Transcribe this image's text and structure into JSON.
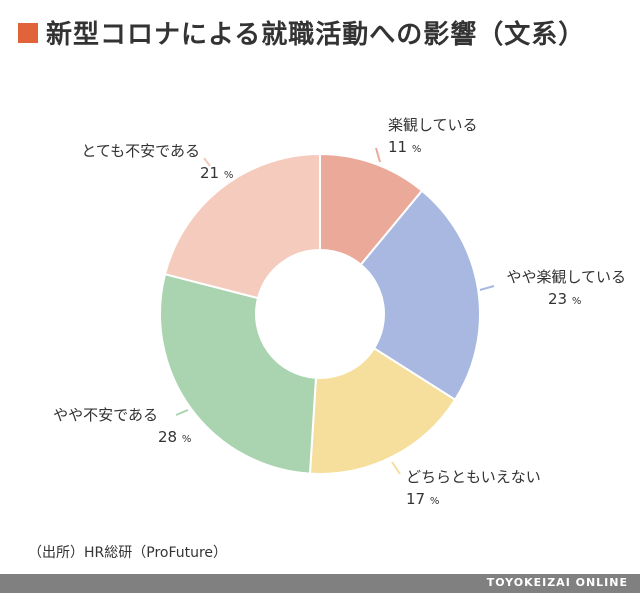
{
  "title": "新型コロナによる就職活動への影響（文系）",
  "accent_color": "#e0633a",
  "source": "（出所）HR総研（ProFuture）",
  "footer": "TOYOKEIZAI ONLINE",
  "chart_data": {
    "type": "pie",
    "donut": true,
    "unit": "%",
    "slices": [
      {
        "label": "楽観している",
        "value": 11,
        "color": "#eba999"
      },
      {
        "label": "やや楽観している",
        "value": 23,
        "color": "#a8b8e0"
      },
      {
        "label": "どちらともいえない",
        "value": 17,
        "color": "#f6de9c"
      },
      {
        "label": "やや不安である",
        "value": 28,
        "color": "#aad4b0"
      },
      {
        "label": "とても不安である",
        "value": 21,
        "color": "#f4cbbd"
      }
    ]
  }
}
